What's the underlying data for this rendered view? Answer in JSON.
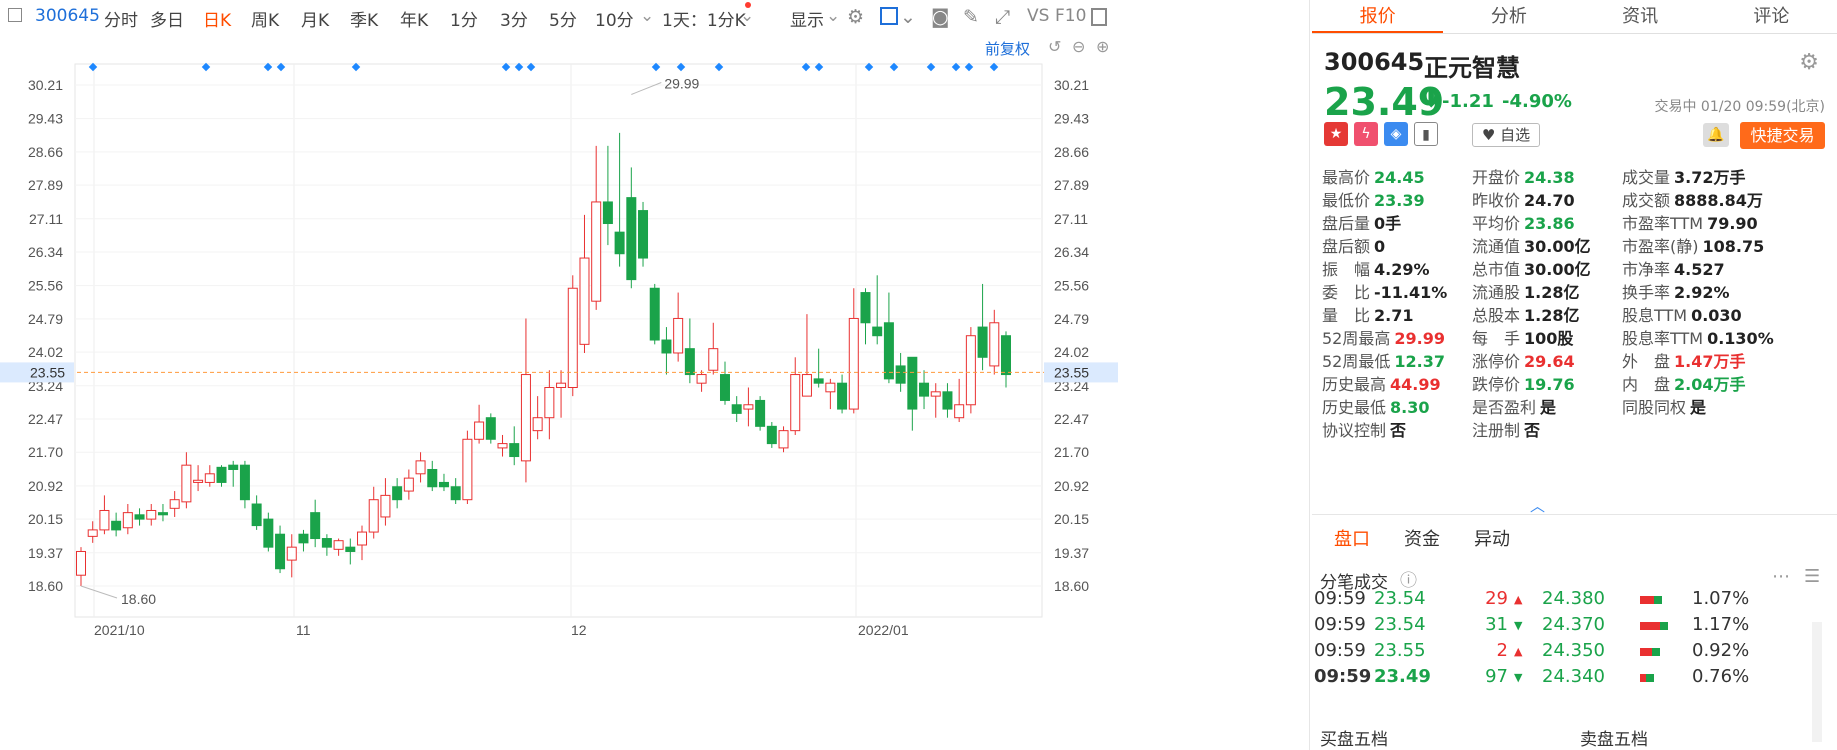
{
  "toolbar": {
    "code": "300645",
    "items": [
      "分时",
      "多日",
      "日K",
      "周K",
      "月K",
      "季K",
      "年K",
      "1分",
      "3分",
      "5分",
      "10分",
      "1天：1分K",
      "显示",
      "VS",
      "F10"
    ],
    "active": "日K",
    "link": "前复权"
  },
  "tabs": [
    "报价",
    "分析",
    "资讯",
    "评论"
  ],
  "quote": {
    "code": "300645",
    "name": "正元智慧",
    "price": "23.49",
    "change": "-1.21",
    "pct": "-4.90%",
    "status": "交易中 01/20 09:59(北京)",
    "zixuan": "自选",
    "quick": "快捷交易"
  },
  "fields": [
    {
      "k": "最高价",
      "v": "24.45",
      "c": "green"
    },
    {
      "k": "开盘价",
      "v": "24.38",
      "c": "green"
    },
    {
      "k": "成交量",
      "v": "3.72万手",
      "c": "dark"
    },
    {
      "k": "最低价",
      "v": "23.39",
      "c": "green"
    },
    {
      "k": "昨收价",
      "v": "24.70",
      "c": "dark"
    },
    {
      "k": "成交额",
      "v": "8888.84万",
      "c": "dark"
    },
    {
      "k": "盘后量",
      "v": "0手",
      "c": "dark"
    },
    {
      "k": "平均价",
      "v": "23.86",
      "c": "green"
    },
    {
      "k": "市盈率TTM",
      "v": "79.90",
      "c": "dark"
    },
    {
      "k": "盘后额",
      "v": "0",
      "c": "dark"
    },
    {
      "k": "流通值",
      "v": "30.00亿",
      "c": "dark"
    },
    {
      "k": "市盈率(静)",
      "v": "108.75",
      "c": "dark"
    },
    {
      "k": "振　幅",
      "v": "4.29%",
      "c": "dark"
    },
    {
      "k": "总市值",
      "v": "30.00亿",
      "c": "dark"
    },
    {
      "k": "市净率",
      "v": "4.527",
      "c": "dark"
    },
    {
      "k": "委　比",
      "v": "-11.41%",
      "c": "dark"
    },
    {
      "k": "流通股",
      "v": "1.28亿",
      "c": "dark"
    },
    {
      "k": "换手率",
      "v": "2.92%",
      "c": "dark"
    },
    {
      "k": "量　比",
      "v": "2.71",
      "c": "dark"
    },
    {
      "k": "总股本",
      "v": "1.28亿",
      "c": "dark"
    },
    {
      "k": "股息TTM",
      "v": "0.030",
      "c": "dark"
    },
    {
      "k": "52周最高",
      "v": "29.99",
      "c": "red"
    },
    {
      "k": "每　手",
      "v": "100股",
      "c": "dark"
    },
    {
      "k": "股息率TTM",
      "v": "0.130%",
      "c": "dark"
    },
    {
      "k": "52周最低",
      "v": "12.37",
      "c": "green"
    },
    {
      "k": "涨停价",
      "v": "29.64",
      "c": "red"
    },
    {
      "k": "外　盘",
      "v": "1.47万手",
      "c": "red"
    },
    {
      "k": "历史最高",
      "v": "44.99",
      "c": "red"
    },
    {
      "k": "跌停价",
      "v": "19.76",
      "c": "green"
    },
    {
      "k": "内　盘",
      "v": "2.04万手",
      "c": "green"
    },
    {
      "k": "历史最低",
      "v": "8.30",
      "c": "green"
    },
    {
      "k": "是否盈利",
      "v": "是",
      "c": "dark"
    },
    {
      "k": "同股同权",
      "v": "是",
      "c": "dark"
    },
    {
      "k": "协议控制",
      "v": "否",
      "c": "dark"
    },
    {
      "k": "注册制",
      "v": "否",
      "c": "dark"
    },
    {
      "k": "",
      "v": "",
      "c": "dark"
    }
  ],
  "subtabs": [
    "盘口",
    "资金",
    "异动"
  ],
  "trades_title": "分笔成交",
  "trades": [
    {
      "t": "09:59",
      "p": "23.54",
      "v": "29",
      "d": "up"
    },
    {
      "t": "09:59",
      "p": "23.54",
      "v": "31",
      "d": "down"
    },
    {
      "t": "09:59",
      "p": "23.55",
      "v": "2",
      "d": "up"
    },
    {
      "t": "09:59",
      "p": "23.49",
      "v": "97",
      "d": "down"
    }
  ],
  "book": [
    {
      "p": "24.380",
      "pct": "1.07%"
    },
    {
      "p": "24.370",
      "pct": "1.17%"
    },
    {
      "p": "24.350",
      "pct": "0.92%"
    },
    {
      "p": "24.340",
      "pct": "0.76%"
    }
  ],
  "bottom": {
    "buy": "买盘五档",
    "sell": "卖盘五档"
  },
  "chart_data": {
    "type": "candlestick",
    "yticks": [
      30.21,
      29.43,
      28.66,
      27.89,
      27.11,
      26.34,
      25.56,
      24.79,
      24.02,
      23.24,
      22.47,
      21.7,
      20.92,
      20.15,
      19.37,
      18.6
    ],
    "ylim": [
      18.6,
      30.21
    ],
    "xlabels": [
      "2021/10",
      "11",
      "12",
      "2022/01"
    ],
    "current": "23.55",
    "max_label": "29.99",
    "min_label": "18.60",
    "candles": [
      [
        18.85,
        19.4,
        18.6,
        19.5
      ],
      [
        19.75,
        19.9,
        19.6,
        20.1
      ],
      [
        19.9,
        20.35,
        19.8,
        20.7
      ],
      [
        20.1,
        19.9,
        19.75,
        20.3
      ],
      [
        19.95,
        20.3,
        19.8,
        20.5
      ],
      [
        20.25,
        20.15,
        20,
        20.4
      ],
      [
        20.15,
        20.35,
        20.0,
        20.5
      ],
      [
        20.3,
        20.25,
        20.1,
        20.5
      ],
      [
        20.4,
        20.6,
        20.2,
        20.8
      ],
      [
        20.55,
        21.4,
        20.4,
        21.7
      ],
      [
        21.0,
        21.05,
        20.8,
        21.4
      ],
      [
        21.0,
        21.2,
        20.9,
        21.4
      ],
      [
        21.35,
        21.0,
        20.9,
        21.4
      ],
      [
        21.4,
        21.3,
        20.9,
        21.5
      ],
      [
        21.4,
        20.6,
        20.4,
        21.5
      ],
      [
        20.5,
        20.0,
        19.9,
        20.7
      ],
      [
        20.15,
        19.5,
        19.4,
        20.3
      ],
      [
        19.8,
        19.0,
        18.9,
        20.0
      ],
      [
        19.2,
        19.5,
        18.8,
        19.8
      ],
      [
        19.8,
        19.6,
        19.4,
        19.9
      ],
      [
        20.3,
        19.7,
        19.5,
        20.6
      ],
      [
        19.7,
        19.5,
        19.3,
        19.8
      ],
      [
        19.45,
        19.65,
        19.3,
        19.7
      ],
      [
        19.5,
        19.4,
        19.1,
        19.7
      ],
      [
        19.55,
        19.85,
        19.2,
        20.0
      ],
      [
        19.85,
        20.6,
        19.7,
        20.9
      ],
      [
        20.2,
        20.7,
        20.0,
        21.1
      ],
      [
        20.9,
        20.6,
        20.4,
        21.1
      ],
      [
        20.8,
        21.1,
        20.6,
        21.3
      ],
      [
        21.2,
        21.5,
        21.0,
        21.7
      ],
      [
        21.3,
        20.9,
        20.8,
        21.5
      ],
      [
        21.0,
        20.9,
        20.8,
        21.2
      ],
      [
        20.9,
        20.6,
        20.5,
        21.1
      ],
      [
        20.6,
        22.0,
        20.5,
        22.2
      ],
      [
        22.0,
        22.4,
        21.9,
        22.8
      ],
      [
        22.5,
        22.0,
        21.9,
        22.6
      ],
      [
        21.8,
        21.9,
        21.6,
        22.1
      ],
      [
        21.9,
        21.6,
        21.4,
        22.3
      ],
      [
        21.5,
        23.5,
        21.0,
        24.8
      ],
      [
        22.2,
        22.5,
        22.0,
        23.0
      ],
      [
        22.5,
        23.2,
        22.0,
        23.6
      ],
      [
        23.2,
        23.3,
        22.5,
        23.6
      ],
      [
        23.2,
        25.5,
        23.0,
        25.8
      ],
      [
        24.2,
        26.2,
        24.0,
        27.2
      ],
      [
        25.2,
        27.5,
        25.0,
        28.8
      ],
      [
        27.5,
        27.0,
        26.5,
        28.8
      ],
      [
        26.8,
        26.3,
        26.0,
        29.1
      ],
      [
        27.6,
        25.7,
        25.5,
        28.3
      ],
      [
        27.3,
        26.2,
        26.0,
        27.5
      ],
      [
        25.5,
        24.3,
        24.2,
        25.6
      ],
      [
        24.3,
        24.0,
        23.5,
        24.6
      ],
      [
        24.0,
        24.8,
        23.8,
        25.4
      ],
      [
        24.1,
        23.5,
        23.3,
        24.8
      ],
      [
        23.3,
        23.5,
        23.1,
        23.6
      ],
      [
        23.6,
        24.1,
        23.5,
        24.7
      ],
      [
        23.5,
        22.9,
        22.8,
        23.8
      ],
      [
        22.8,
        22.6,
        22.4,
        23.0
      ],
      [
        22.7,
        22.8,
        22.3,
        23.2
      ],
      [
        22.9,
        22.3,
        22.2,
        23.0
      ],
      [
        22.3,
        21.9,
        21.8,
        22.4
      ],
      [
        21.8,
        22.2,
        21.7,
        22.3
      ],
      [
        22.2,
        23.5,
        22.1,
        23.9
      ],
      [
        23.0,
        23.5,
        23.0,
        24.9
      ],
      [
        23.4,
        23.3,
        23.2,
        24.1
      ],
      [
        23.1,
        23.3,
        22.7,
        23.4
      ],
      [
        23.3,
        22.7,
        22.6,
        23.5
      ],
      [
        22.7,
        24.8,
        22.6,
        25.5
      ],
      [
        25.4,
        24.7,
        24.2,
        25.5
      ],
      [
        24.6,
        24.4,
        24.2,
        25.8
      ],
      [
        24.7,
        23.4,
        23.3,
        25.4
      ],
      [
        23.7,
        23.3,
        23.1,
        24.0
      ],
      [
        23.9,
        22.7,
        22.2,
        23.9
      ],
      [
        23.3,
        23.0,
        22.7,
        23.6
      ],
      [
        23.0,
        23.1,
        22.5,
        23.3
      ],
      [
        23.1,
        22.7,
        22.5,
        23.3
      ],
      [
        22.5,
        22.8,
        22.4,
        23.4
      ],
      [
        22.8,
        24.4,
        22.6,
        24.6
      ],
      [
        24.6,
        23.9,
        23.6,
        25.6
      ],
      [
        23.7,
        24.7,
        23.5,
        25.0
      ],
      [
        24.4,
        23.5,
        23.2,
        24.5
      ]
    ]
  }
}
